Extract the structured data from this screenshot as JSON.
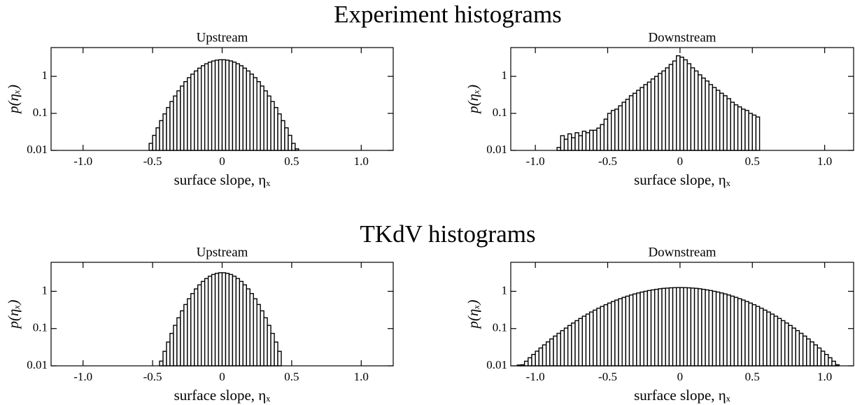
{
  "sections": [
    {
      "title": "Experiment histograms"
    },
    {
      "title": "TKdV histograms"
    }
  ],
  "chart_data": [
    {
      "type": "histogram",
      "title": "Upstream",
      "xlabel": "surface slope, ηₓ",
      "ylabel": "p(ηₓ)",
      "ylog": true,
      "color": "#000000",
      "xlim": [
        -1.23,
        1.23
      ],
      "ylim": [
        0.01,
        6
      ],
      "xticks": [
        {
          "value": -1,
          "label": "-1.0"
        },
        -0.5,
        0,
        0.5,
        {
          "value": 1,
          "label": "1.0"
        }
      ],
      "yticks": [
        0.01,
        0.1,
        1
      ],
      "bins": [
        -0.525,
        -0.5,
        -0.475,
        -0.45,
        -0.425,
        -0.4,
        -0.375,
        -0.35,
        -0.325,
        -0.3,
        -0.275,
        -0.25,
        -0.225,
        -0.2,
        -0.175,
        -0.15,
        -0.125,
        -0.1,
        -0.075,
        -0.05,
        -0.025,
        0,
        0.025,
        0.05,
        0.075,
        0.1,
        0.125,
        0.15,
        0.175,
        0.2,
        0.225,
        0.25,
        0.275,
        0.3,
        0.325,
        0.35,
        0.375,
        0.4,
        0.425,
        0.45,
        0.475,
        0.5,
        0.525,
        0.55
      ],
      "values": [
        0.0155,
        0.0255,
        0.0407,
        0.0637,
        0.0968,
        0.144,
        0.209,
        0.295,
        0.407,
        0.548,
        0.72,
        0.923,
        1.15,
        1.4,
        1.67,
        1.94,
        2.19,
        2.42,
        2.61,
        2.74,
        2.81,
        2.81,
        2.74,
        2.61,
        2.42,
        2.19,
        1.94,
        1.67,
        1.4,
        1.15,
        0.923,
        0.72,
        0.548,
        0.407,
        0.295,
        0.209,
        0.144,
        0.0968,
        0.0637,
        0.0407,
        0.0255,
        0.0155,
        0.011
      ]
    },
    {
      "type": "histogram",
      "title": "Downstream",
      "xlabel": "surface slope, ηₓ",
      "ylabel": "p(ηₓ)",
      "ylog": true,
      "color": "#000000",
      "xlim": [
        -1.17,
        1.2
      ],
      "ylim": [
        0.01,
        6
      ],
      "xticks": [
        {
          "value": -1,
          "label": "-1.0"
        },
        -0.5,
        0,
        0.5,
        {
          "value": 1,
          "label": "1.0"
        }
      ],
      "yticks": [
        0.01,
        0.1,
        1
      ],
      "bins": [
        -0.85,
        -0.825,
        -0.8,
        -0.775,
        -0.75,
        -0.725,
        -0.7,
        -0.675,
        -0.65,
        -0.625,
        -0.6,
        -0.575,
        -0.55,
        -0.525,
        -0.5,
        -0.475,
        -0.45,
        -0.425,
        -0.4,
        -0.375,
        -0.35,
        -0.325,
        -0.3,
        -0.275,
        -0.25,
        -0.225,
        -0.2,
        -0.175,
        -0.15,
        -0.125,
        -0.1,
        -0.075,
        -0.05,
        -0.025,
        0,
        0.025,
        0.05,
        0.075,
        0.1,
        0.125,
        0.15,
        0.175,
        0.2,
        0.225,
        0.25,
        0.275,
        0.3,
        0.325,
        0.35,
        0.375,
        0.4,
        0.425,
        0.45,
        0.475,
        0.5,
        0.525,
        0.55
      ],
      "values": [
        0.012,
        0.025,
        0.02,
        0.028,
        0.022,
        0.03,
        0.025,
        0.033,
        0.03,
        0.035,
        0.035,
        0.04,
        0.05,
        0.07,
        0.1,
        0.12,
        0.13,
        0.16,
        0.2,
        0.24,
        0.3,
        0.35,
        0.42,
        0.5,
        0.6,
        0.7,
        0.85,
        1.0,
        1.2,
        1.4,
        1.7,
        2.1,
        2.6,
        3.6,
        3.3,
        2.8,
        2.2,
        1.7,
        1.4,
        1.1,
        0.9,
        0.75,
        0.6,
        0.5,
        0.42,
        0.35,
        0.3,
        0.25,
        0.2,
        0.17,
        0.15,
        0.13,
        0.12,
        0.1,
        0.09,
        0.08
      ]
    },
    {
      "type": "histogram",
      "title": "Upstream",
      "xlabel": "surface slope, ηₓ",
      "ylabel": "p(ηₓ)",
      "ylog": true,
      "color": "#000000",
      "xlim": [
        -1.23,
        1.23
      ],
      "ylim": [
        0.01,
        6
      ],
      "xticks": [
        {
          "value": -1,
          "label": "-1.0"
        },
        -0.5,
        0,
        0.5,
        {
          "value": 1,
          "label": "1.0"
        }
      ],
      "yticks": [
        0.01,
        0.1,
        1
      ],
      "bins": [
        -0.45,
        -0.425,
        -0.4,
        -0.375,
        -0.35,
        -0.325,
        -0.3,
        -0.275,
        -0.25,
        -0.225,
        -0.2,
        -0.175,
        -0.15,
        -0.125,
        -0.1,
        -0.075,
        -0.05,
        -0.025,
        0,
        0.025,
        0.05,
        0.075,
        0.1,
        0.125,
        0.15,
        0.175,
        0.2,
        0.225,
        0.25,
        0.275,
        0.3,
        0.325,
        0.35,
        0.375,
        0.4,
        0.425
      ],
      "values": [
        0.0134,
        0.0245,
        0.0435,
        0.0743,
        0.122,
        0.195,
        0.299,
        0.442,
        0.632,
        0.871,
        1.16,
        1.49,
        1.84,
        2.2,
        2.54,
        2.83,
        3.04,
        3.15,
        3.15,
        3.04,
        2.83,
        2.54,
        2.2,
        1.84,
        1.49,
        1.16,
        0.871,
        0.632,
        0.442,
        0.299,
        0.195,
        0.122,
        0.0743,
        0.0435,
        0.0245
      ]
    },
    {
      "type": "histogram",
      "title": "Downstream",
      "xlabel": "surface slope, ηₓ",
      "ylabel": "p(ηₓ)",
      "ylog": true,
      "color": "#000000",
      "xlim": [
        -1.17,
        1.2
      ],
      "ylim": [
        0.01,
        6
      ],
      "xticks": [
        {
          "value": -1,
          "label": "-1.0"
        },
        -0.5,
        0,
        0.5,
        {
          "value": 1,
          "label": "1.0"
        }
      ],
      "yticks": [
        0.01,
        0.1,
        1
      ],
      "bins": [
        -1.125,
        -1.1,
        -1.075,
        -1.05,
        -1.025,
        -1,
        -0.975,
        -0.95,
        -0.925,
        -0.9,
        -0.875,
        -0.85,
        -0.825,
        -0.8,
        -0.775,
        -0.75,
        -0.725,
        -0.7,
        -0.675,
        -0.65,
        -0.625,
        -0.6,
        -0.575,
        -0.55,
        -0.525,
        -0.5,
        -0.475,
        -0.45,
        -0.425,
        -0.4,
        -0.375,
        -0.35,
        -0.325,
        -0.3,
        -0.275,
        -0.25,
        -0.225,
        -0.2,
        -0.175,
        -0.15,
        -0.125,
        -0.1,
        -0.075,
        -0.05,
        -0.025,
        0,
        0.025,
        0.05,
        0.075,
        0.1,
        0.125,
        0.15,
        0.175,
        0.2,
        0.225,
        0.25,
        0.275,
        0.3,
        0.325,
        0.35,
        0.375,
        0.4,
        0.425,
        0.45,
        0.475,
        0.5,
        0.525,
        0.55,
        0.575,
        0.6,
        0.625,
        0.65,
        0.675,
        0.7,
        0.725,
        0.75,
        0.775,
        0.8,
        0.825,
        0.85,
        0.875,
        0.9,
        0.925,
        0.95,
        0.975,
        1,
        1.025,
        1.05,
        1.075,
        1.1
      ],
      "values": [
        0.0105,
        0.0107,
        0.0133,
        0.0165,
        0.0202,
        0.0247,
        0.0301,
        0.0365,
        0.0439,
        0.0527,
        0.0629,
        0.0746,
        0.0881,
        0.103,
        0.121,
        0.141,
        0.163,
        0.187,
        0.215,
        0.245,
        0.278,
        0.313,
        0.352,
        0.393,
        0.437,
        0.483,
        0.532,
        0.582,
        0.634,
        0.687,
        0.741,
        0.796,
        0.849,
        0.902,
        0.954,
        1.0,
        1.05,
        1.09,
        1.13,
        1.17,
        1.2,
        1.22,
        1.24,
        1.25,
        1.26,
        1.26,
        1.25,
        1.24,
        1.22,
        1.2,
        1.17,
        1.13,
        1.09,
        1.05,
        1.0,
        0.954,
        0.902,
        0.849,
        0.796,
        0.741,
        0.687,
        0.634,
        0.582,
        0.532,
        0.483,
        0.437,
        0.393,
        0.352,
        0.313,
        0.278,
        0.245,
        0.215,
        0.187,
        0.163,
        0.141,
        0.121,
        0.103,
        0.0881,
        0.0746,
        0.0629,
        0.0527,
        0.0439,
        0.0365,
        0.0301,
        0.0247,
        0.0202,
        0.0165,
        0.0133,
        0.0107
      ]
    }
  ]
}
